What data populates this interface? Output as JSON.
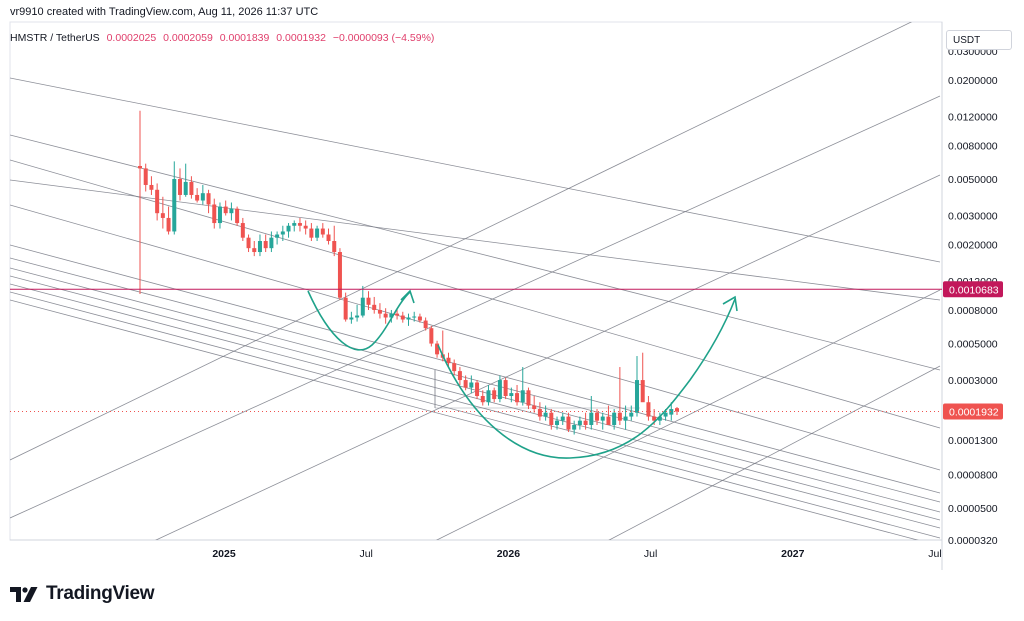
{
  "header": {
    "attribution": "vr9910 created with TradingView.com, Aug 11, 2026 11:37 UTC"
  },
  "symbol": {
    "name": "HMSTR / TetherUS",
    "open": "0.0002025",
    "high": "0.0002059",
    "low": "0.0001839",
    "close": "0.0001932",
    "change": "−0.0000093 (−4.59%)"
  },
  "currency_label": "USDT",
  "brand": {
    "name": "TradingView",
    "logo_icon": "tradingview-logo-icon"
  },
  "colors": {
    "up": "#26a69a",
    "down": "#ef5350",
    "accent": "#e03e6b",
    "curve": "#1fa28a",
    "fan": "#787b86"
  },
  "chart_data": {
    "type": "candlestick",
    "y_scale": "log",
    "ylim": [
      3.2e-05,
      0.045
    ],
    "x_ticks": [
      "2025",
      "Jul",
      "2026",
      "Jul",
      "2027",
      "Jul"
    ],
    "y_ticks": [
      "0.0300000",
      "0.0200000",
      "0.0120000",
      "0.0080000",
      "0.0050000",
      "0.0030000",
      "0.0020000",
      "0.0012000",
      "0.0008000",
      "0.0005000",
      "0.0003000",
      "0.0001300",
      "0.0000800",
      "0.0000500",
      "0.0000320"
    ],
    "price_labels": [
      {
        "name": "resistance",
        "value": "0.0010683"
      },
      {
        "name": "last",
        "value": "0.0001932"
      }
    ],
    "candles": [
      [
        0.006,
        0.013,
        0.001,
        0.0058
      ],
      [
        0.0058,
        0.0062,
        0.0042,
        0.0046
      ],
      [
        0.0046,
        0.0052,
        0.004,
        0.0043
      ],
      [
        0.0043,
        0.0047,
        0.0028,
        0.0031
      ],
      [
        0.0031,
        0.0039,
        0.0025,
        0.0029
      ],
      [
        0.0029,
        0.0034,
        0.0023,
        0.0024
      ],
      [
        0.0024,
        0.0064,
        0.0023,
        0.005
      ],
      [
        0.005,
        0.0058,
        0.0037,
        0.004
      ],
      [
        0.004,
        0.0062,
        0.0039,
        0.0048
      ],
      [
        0.0048,
        0.0052,
        0.0038,
        0.004
      ],
      [
        0.004,
        0.0044,
        0.0036,
        0.0037
      ],
      [
        0.0037,
        0.0046,
        0.0035,
        0.0041
      ],
      [
        0.0041,
        0.0043,
        0.0031,
        0.0035
      ],
      [
        0.0035,
        0.0038,
        0.0025,
        0.0027
      ],
      [
        0.0027,
        0.0036,
        0.0025,
        0.0034
      ],
      [
        0.0034,
        0.0037,
        0.003,
        0.0031
      ],
      [
        0.0031,
        0.0036,
        0.0028,
        0.0033
      ],
      [
        0.0033,
        0.0034,
        0.0026,
        0.0027
      ],
      [
        0.0027,
        0.0029,
        0.0021,
        0.0022
      ],
      [
        0.0022,
        0.0023,
        0.0018,
        0.0019
      ],
      [
        0.0019,
        0.0021,
        0.0017,
        0.0018
      ],
      [
        0.0018,
        0.0023,
        0.0017,
        0.0021
      ],
      [
        0.0021,
        0.0023,
        0.0018,
        0.0019
      ],
      [
        0.0019,
        0.0024,
        0.0018,
        0.0022
      ],
      [
        0.0022,
        0.0024,
        0.002,
        0.0023
      ],
      [
        0.0023,
        0.0026,
        0.0021,
        0.0024
      ],
      [
        0.0024,
        0.0027,
        0.0022,
        0.0026
      ],
      [
        0.0026,
        0.0028,
        0.0024,
        0.0027
      ],
      [
        0.0027,
        0.0029,
        0.0024,
        0.0026
      ],
      [
        0.0026,
        0.0028,
        0.0023,
        0.0025
      ],
      [
        0.0025,
        0.0027,
        0.0021,
        0.0022
      ],
      [
        0.0022,
        0.0026,
        0.0021,
        0.0025
      ],
      [
        0.0025,
        0.0027,
        0.0022,
        0.0023
      ],
      [
        0.0023,
        0.0025,
        0.002,
        0.0021
      ],
      [
        0.0021,
        0.0026,
        0.0017,
        0.0018
      ],
      [
        0.0018,
        0.0019,
        0.00092,
        0.00095
      ],
      [
        0.00095,
        0.00102,
        0.00068,
        0.0007
      ],
      [
        0.0007,
        0.00078,
        0.00066,
        0.00072
      ],
      [
        0.00072,
        0.00086,
        0.00068,
        0.00074
      ],
      [
        0.00074,
        0.00112,
        0.00072,
        0.00095
      ],
      [
        0.00095,
        0.00104,
        0.0008,
        0.00086
      ],
      [
        0.00086,
        0.00096,
        0.00076,
        0.0008
      ],
      [
        0.0008,
        0.00088,
        0.00071,
        0.00076
      ],
      [
        0.00076,
        0.00082,
        0.00066,
        0.00072
      ],
      [
        0.00072,
        0.0008,
        0.00067,
        0.00076
      ],
      [
        0.00076,
        0.00082,
        0.0007,
        0.00074
      ],
      [
        0.00074,
        0.00078,
        0.00067,
        0.0007
      ],
      [
        0.0007,
        0.00076,
        0.00064,
        0.00072
      ],
      [
        0.00072,
        0.00078,
        0.00068,
        0.00073
      ],
      [
        0.00073,
        0.00076,
        0.00067,
        0.00069
      ],
      [
        0.00069,
        0.00072,
        0.0006,
        0.00062
      ],
      [
        0.00062,
        0.00064,
        0.00048,
        0.0005
      ],
      [
        0.0005,
        0.00052,
        0.00041,
        0.00043
      ],
      [
        0.00043,
        0.0006,
        0.00039,
        0.00041
      ],
      [
        0.00041,
        0.00044,
        0.00036,
        0.00038
      ],
      [
        0.00038,
        0.0004,
        0.00032,
        0.00034
      ],
      [
        0.00034,
        0.00036,
        0.00028,
        0.0003
      ],
      [
        0.0003,
        0.00032,
        0.00026,
        0.00027
      ],
      [
        0.00027,
        0.00032,
        0.00025,
        0.00029
      ],
      [
        0.00029,
        0.0003,
        0.00023,
        0.00024
      ],
      [
        0.00024,
        0.00026,
        0.00021,
        0.00022
      ],
      [
        0.00022,
        0.00028,
        0.00021,
        0.00026
      ],
      [
        0.00026,
        0.00027,
        0.00022,
        0.00023
      ],
      [
        0.00023,
        0.00032,
        0.00022,
        0.0003
      ],
      [
        0.0003,
        0.00031,
        0.00023,
        0.00024
      ],
      [
        0.00024,
        0.00027,
        0.00022,
        0.00025
      ],
      [
        0.00025,
        0.00028,
        0.00021,
        0.00022
      ],
      [
        0.00022,
        0.00036,
        0.00021,
        0.00026
      ],
      [
        0.00026,
        0.00027,
        0.0002,
        0.00021
      ],
      [
        0.00021,
        0.00024,
        0.00019,
        0.0002
      ],
      [
        0.0002,
        0.00022,
        0.00017,
        0.00018
      ],
      [
        0.00018,
        0.00021,
        0.00017,
        0.00019
      ],
      [
        0.00019,
        0.0002,
        0.00015,
        0.00016
      ],
      [
        0.00016,
        0.00018,
        0.00015,
        0.00017
      ],
      [
        0.00017,
        0.00019,
        0.00016,
        0.00018
      ],
      [
        0.00018,
        0.00019,
        0.000145,
        0.00015
      ],
      [
        0.00015,
        0.00017,
        0.00014,
        0.00016
      ],
      [
        0.00016,
        0.00018,
        0.00015,
        0.00017
      ],
      [
        0.00017,
        0.00019,
        0.00015,
        0.00016
      ],
      [
        0.00016,
        0.00024,
        0.00015,
        0.00019
      ],
      [
        0.00019,
        0.0002,
        0.00016,
        0.00017
      ],
      [
        0.00017,
        0.00019,
        0.00015,
        0.00018
      ],
      [
        0.00018,
        0.00021,
        0.00016,
        0.00016
      ],
      [
        0.00016,
        0.0002,
        0.00015,
        0.00019
      ],
      [
        0.00019,
        0.00036,
        0.00016,
        0.00017
      ],
      [
        0.00017,
        0.00021,
        0.00015,
        0.00018
      ],
      [
        0.00018,
        0.00021,
        0.00017,
        0.00019
      ],
      [
        0.00019,
        0.00042,
        0.00018,
        0.0003
      ],
      [
        0.0003,
        0.00044,
        0.00029,
        0.00022
      ],
      [
        0.00022,
        0.00024,
        0.00017,
        0.00018
      ],
      [
        0.00018,
        0.0002,
        0.00016,
        0.00017
      ],
      [
        0.00017,
        0.00019,
        0.00016,
        0.00018
      ],
      [
        0.00018,
        0.0002,
        0.00017,
        0.00019
      ],
      [
        0.000185,
        0.00022,
        0.00017,
        0.0002
      ],
      [
        0.0002025,
        0.0002059,
        0.0001839,
        0.0001932
      ]
    ]
  }
}
